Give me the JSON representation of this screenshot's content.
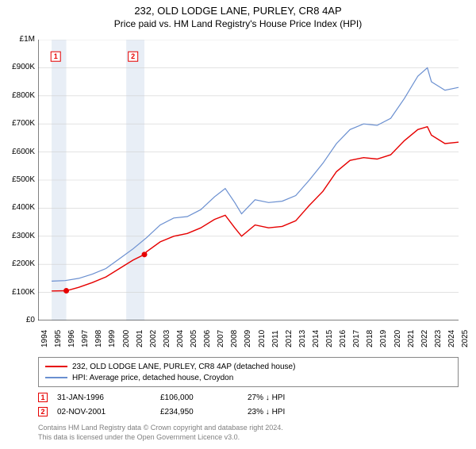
{
  "title": "232, OLD LODGE LANE, PURLEY, CR8 4AP",
  "subtitle": "Price paid vs. HM Land Registry's House Price Index (HPI)",
  "chart": {
    "type": "line",
    "background_color": "#ffffff",
    "grid_color": "#d0d0d0",
    "axis_color": "#000000",
    "shade_color": "#e8eef6",
    "xlim": [
      1994,
      2025
    ],
    "ylim": [
      0,
      1000000
    ],
    "y_ticks": [
      0,
      100000,
      200000,
      300000,
      400000,
      500000,
      600000,
      700000,
      800000,
      900000,
      1000000
    ],
    "y_tick_labels": [
      "£0",
      "£100K",
      "£200K",
      "£300K",
      "£400K",
      "£500K",
      "£600K",
      "£700K",
      "£800K",
      "£900K",
      "£1M"
    ],
    "x_ticks": [
      1994,
      1995,
      1996,
      1997,
      1998,
      1999,
      2000,
      2001,
      2002,
      2003,
      2004,
      2005,
      2006,
      2007,
      2008,
      2009,
      2010,
      2011,
      2012,
      2013,
      2014,
      2015,
      2016,
      2017,
      2018,
      2019,
      2020,
      2021,
      2022,
      2023,
      2024,
      2025
    ],
    "shade_ranges": [
      [
        1995,
        1996.08
      ],
      [
        2000.5,
        2001.84
      ]
    ],
    "series": [
      {
        "name": "232, OLD LODGE LANE, PURLEY, CR8 4AP (detached house)",
        "color": "#e60000",
        "line_width": 1.4,
        "data": [
          [
            1995,
            105000
          ],
          [
            1996.08,
            106000
          ],
          [
            1997,
            118000
          ],
          [
            1998,
            135000
          ],
          [
            1999,
            155000
          ],
          [
            2000,
            185000
          ],
          [
            2001,
            215000
          ],
          [
            2001.84,
            234950
          ],
          [
            2002,
            245000
          ],
          [
            2003,
            280000
          ],
          [
            2004,
            300000
          ],
          [
            2005,
            310000
          ],
          [
            2006,
            330000
          ],
          [
            2007,
            360000
          ],
          [
            2007.8,
            375000
          ],
          [
            2008.5,
            330000
          ],
          [
            2009,
            300000
          ],
          [
            2010,
            340000
          ],
          [
            2011,
            330000
          ],
          [
            2012,
            335000
          ],
          [
            2013,
            355000
          ],
          [
            2014,
            410000
          ],
          [
            2015,
            460000
          ],
          [
            2016,
            530000
          ],
          [
            2017,
            570000
          ],
          [
            2018,
            580000
          ],
          [
            2019,
            575000
          ],
          [
            2020,
            590000
          ],
          [
            2021,
            640000
          ],
          [
            2022,
            680000
          ],
          [
            2022.7,
            690000
          ],
          [
            2023,
            660000
          ],
          [
            2024,
            630000
          ],
          [
            2025,
            635000
          ]
        ]
      },
      {
        "name": "HPI: Average price, detached house, Croydon",
        "color": "#6a8fd0",
        "line_width": 1.2,
        "data": [
          [
            1995,
            140000
          ],
          [
            1996,
            142000
          ],
          [
            1997,
            150000
          ],
          [
            1998,
            165000
          ],
          [
            1999,
            185000
          ],
          [
            2000,
            220000
          ],
          [
            2001,
            255000
          ],
          [
            2002,
            295000
          ],
          [
            2003,
            340000
          ],
          [
            2004,
            365000
          ],
          [
            2005,
            370000
          ],
          [
            2006,
            395000
          ],
          [
            2007,
            440000
          ],
          [
            2007.8,
            470000
          ],
          [
            2008.5,
            420000
          ],
          [
            2009,
            380000
          ],
          [
            2010,
            430000
          ],
          [
            2011,
            420000
          ],
          [
            2012,
            425000
          ],
          [
            2013,
            445000
          ],
          [
            2014,
            500000
          ],
          [
            2015,
            560000
          ],
          [
            2016,
            630000
          ],
          [
            2017,
            680000
          ],
          [
            2018,
            700000
          ],
          [
            2019,
            695000
          ],
          [
            2020,
            720000
          ],
          [
            2021,
            790000
          ],
          [
            2022,
            870000
          ],
          [
            2022.7,
            900000
          ],
          [
            2023,
            850000
          ],
          [
            2024,
            820000
          ],
          [
            2025,
            830000
          ]
        ]
      }
    ],
    "sale_markers": [
      {
        "label": "1",
        "x": 1996.08,
        "y": 106000,
        "color": "#e60000",
        "box_fill": "#ffffff"
      },
      {
        "label": "2",
        "x": 2001.84,
        "y": 234950,
        "color": "#e60000",
        "box_fill": "#ffffff"
      }
    ],
    "label_markers": [
      {
        "label": "1",
        "x": 1995.3,
        "y": 940000,
        "color": "#e60000"
      },
      {
        "label": "2",
        "x": 2001.0,
        "y": 940000,
        "color": "#e60000"
      }
    ]
  },
  "legend": {
    "border_color": "#888888",
    "items": [
      {
        "color": "#e60000",
        "label": "232, OLD LODGE LANE, PURLEY, CR8 4AP (detached house)"
      },
      {
        "color": "#6a8fd0",
        "label": "HPI: Average price, detached house, Croydon"
      }
    ]
  },
  "sales": [
    {
      "marker": "1",
      "marker_color": "#e60000",
      "date": "31-JAN-1996",
      "price": "£106,000",
      "pct": "27% ↓ HPI"
    },
    {
      "marker": "2",
      "marker_color": "#e60000",
      "date": "02-NOV-2001",
      "price": "£234,950",
      "pct": "23% ↓ HPI"
    }
  ],
  "footnote_line1": "Contains HM Land Registry data © Crown copyright and database right 2024.",
  "footnote_line2": "This data is licensed under the Open Government Licence v3.0."
}
